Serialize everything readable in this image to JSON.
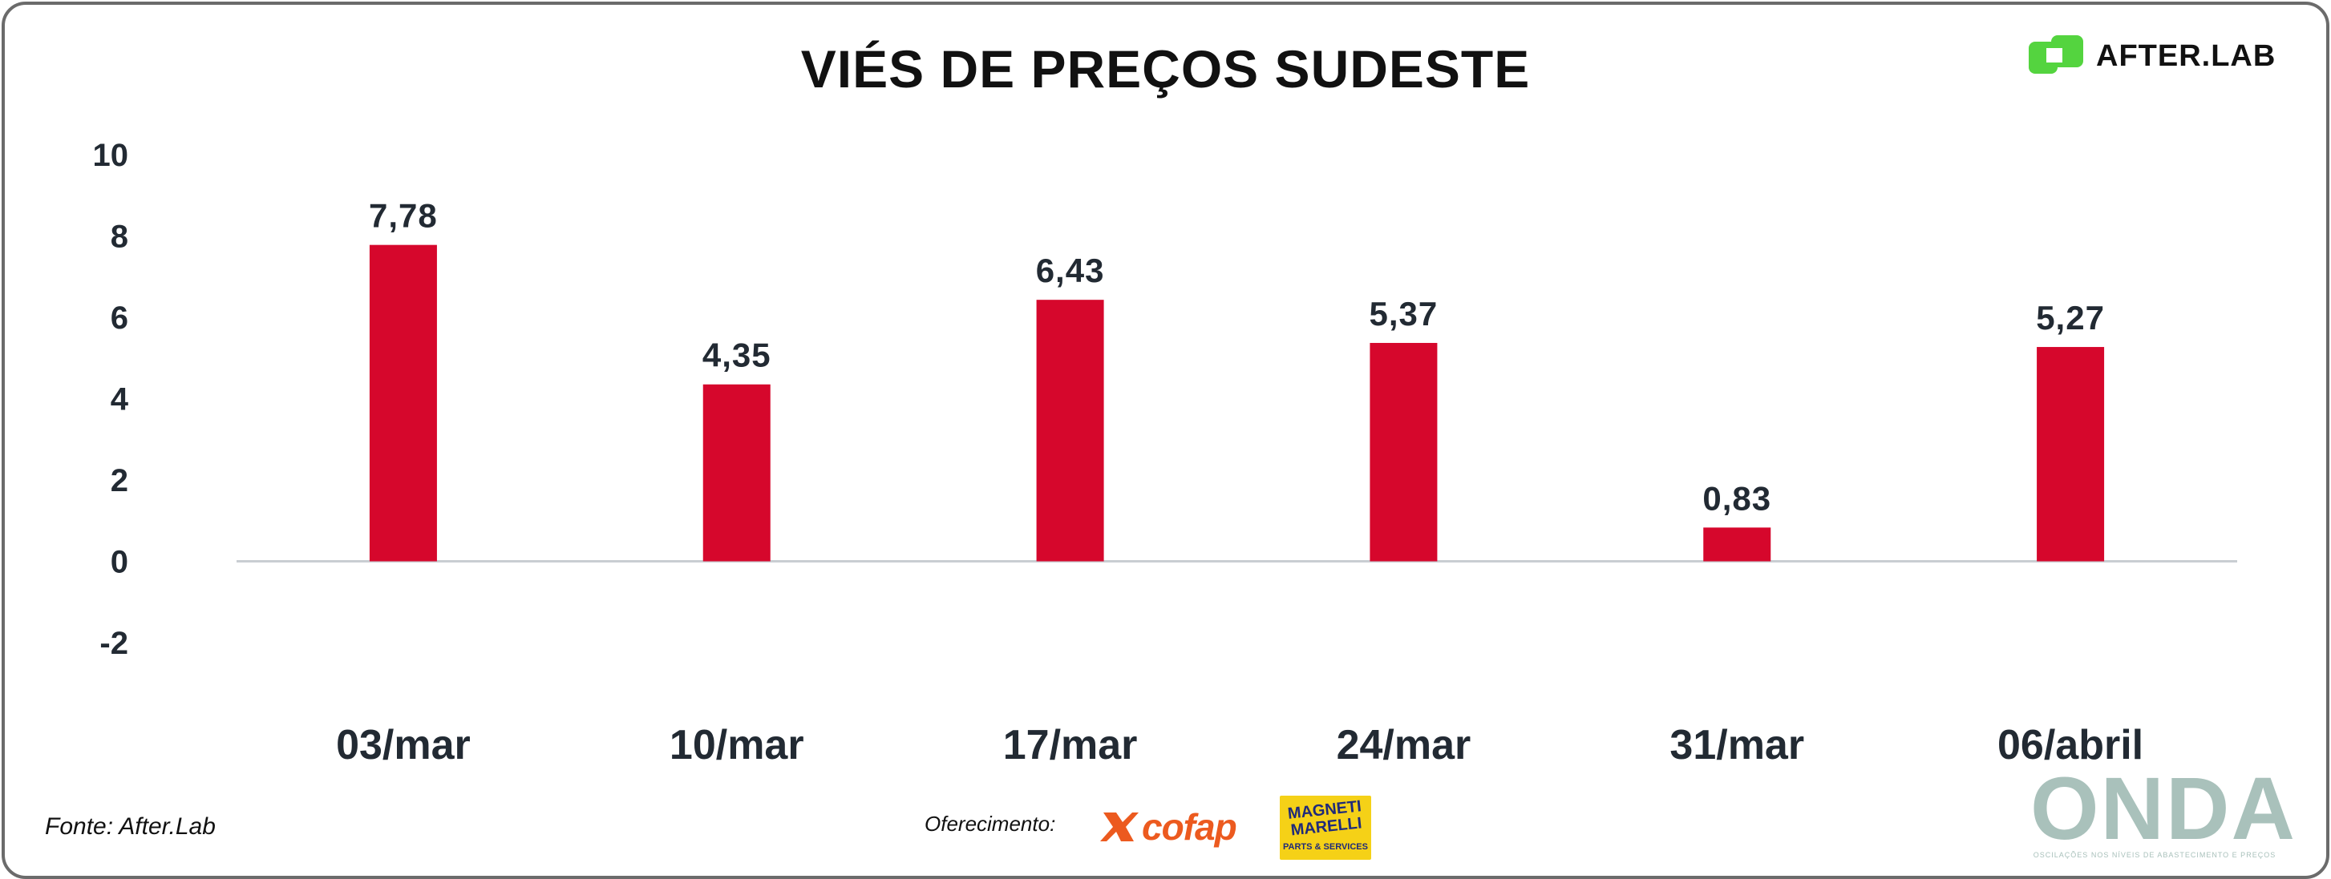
{
  "title": "VIÉS DE PREÇOS SUDESTE",
  "brand": {
    "name": "AFTER.LAB",
    "color": "#54d43f"
  },
  "source": "Fonte: After.Lab",
  "sponsor": {
    "label": "Oferecimento:",
    "cofap": "cofap",
    "magneti_name": "MAGNETI MARELLI",
    "magneti_sub": "PARTS & SERVICES"
  },
  "onda": {
    "name": "ONDA",
    "tagline": "OSCILAÇÕES NOS NÍVEIS DE ABASTECIMENTO E PREÇOS"
  },
  "colors": {
    "bar": "#d6072c",
    "axis": "#c9cdd2",
    "text": "#222a33"
  },
  "chart_data": {
    "type": "bar",
    "categories": [
      "03/mar",
      "10/mar",
      "17/mar",
      "24/mar",
      "31/mar",
      "06/abril"
    ],
    "values": [
      7.78,
      4.35,
      6.43,
      5.37,
      0.83,
      5.27
    ],
    "value_labels": [
      "7,78",
      "4,35",
      "6,43",
      "5,37",
      "0,83",
      "5,27"
    ],
    "yticks": [
      10,
      8,
      6,
      4,
      2,
      0,
      -2
    ],
    "ylim": [
      -2,
      10
    ],
    "grid": false,
    "legend": "none"
  }
}
